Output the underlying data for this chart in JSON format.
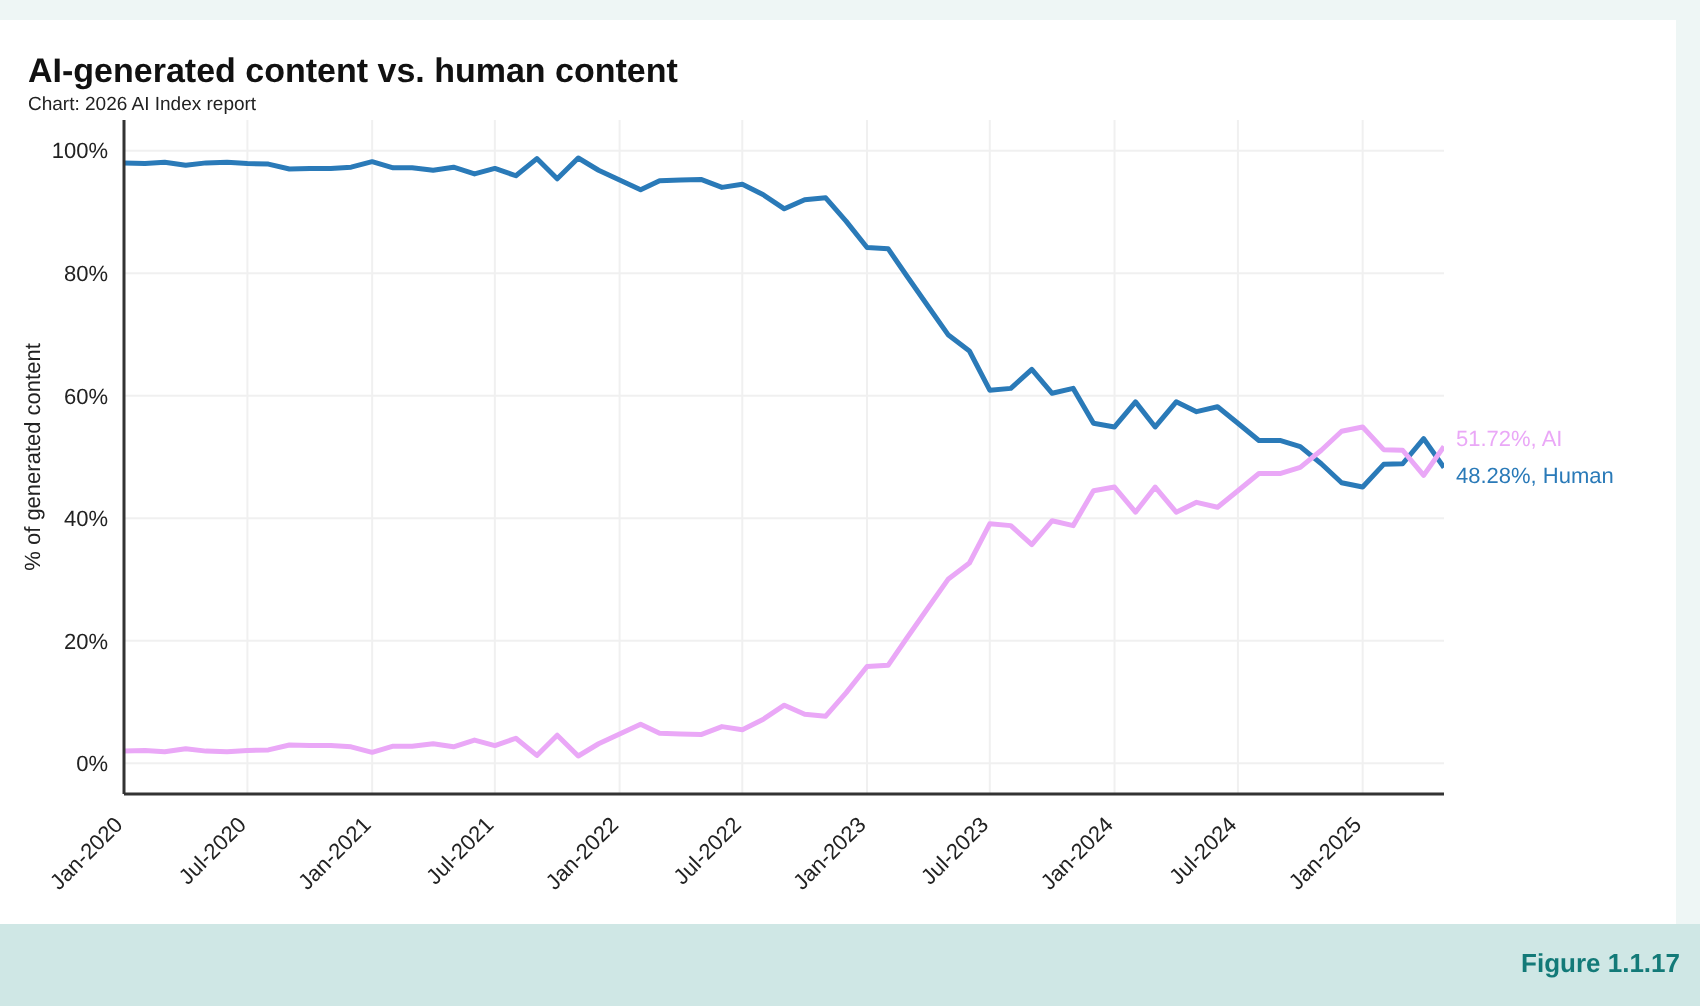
{
  "chart_data": {
    "type": "line",
    "title": "AI-generated content vs. human content",
    "subtitle": "Chart: 2026 AI Index report",
    "ylabel": "% of generated content",
    "x": [
      "2020-01",
      "2020-02",
      "2020-03",
      "2020-04",
      "2020-05",
      "2020-06",
      "2020-07",
      "2020-08",
      "2020-09",
      "2020-10",
      "2020-11",
      "2020-12",
      "2021-01",
      "2021-02",
      "2021-03",
      "2021-04",
      "2021-05",
      "2021-06",
      "2021-07",
      "2021-08",
      "2021-09",
      "2021-10",
      "2021-11",
      "2021-12",
      "2022-01",
      "2022-02",
      "2022-03",
      "2022-04",
      "2022-05",
      "2022-06",
      "2022-07",
      "2022-08",
      "2022-09",
      "2022-10",
      "2022-11",
      "2022-12",
      "2023-01",
      "2023-02",
      "2023-03",
      "2023-04",
      "2023-05",
      "2023-06",
      "2023-07",
      "2023-08",
      "2023-09",
      "2023-10",
      "2023-11",
      "2023-12",
      "2024-01",
      "2024-02",
      "2024-03",
      "2024-04",
      "2024-05",
      "2024-06",
      "2024-07",
      "2024-08",
      "2024-09",
      "2024-10",
      "2024-11",
      "2024-12",
      "2025-01",
      "2025-02",
      "2025-03",
      "2025-04",
      "2025-05"
    ],
    "series": [
      {
        "name": "Human",
        "color": "#2a7ab8",
        "values": [
          98.0,
          97.9,
          98.1,
          97.6,
          98.0,
          98.1,
          97.9,
          97.8,
          97.0,
          97.1,
          97.1,
          97.3,
          98.2,
          97.2,
          97.2,
          96.8,
          97.3,
          96.2,
          97.1,
          95.9,
          98.7,
          95.4,
          98.8,
          96.8,
          95.2,
          93.6,
          95.1,
          95.2,
          95.3,
          94.0,
          94.5,
          92.8,
          90.5,
          92.0,
          92.3,
          88.5,
          84.2,
          84.0,
          79.5,
          74.6,
          69.9,
          67.3,
          60.9,
          61.2,
          64.3,
          60.4,
          61.2,
          55.5,
          54.9,
          59.0,
          54.9,
          59.0,
          57.4,
          58.2,
          55.5,
          52.7,
          52.7,
          51.7,
          48.9,
          45.8,
          45.1,
          48.8,
          48.9,
          53.0,
          48.28
        ],
        "value_labels": [
          null,
          null,
          null,
          null,
          null,
          null,
          null,
          null,
          null,
          null,
          null,
          null,
          null,
          null,
          null,
          null,
          null,
          null,
          null,
          null,
          null,
          null,
          null,
          null,
          null,
          null,
          null,
          null,
          null,
          null,
          null,
          null,
          null,
          null,
          null,
          null,
          null,
          null,
          null,
          null,
          null,
          null,
          null,
          null,
          null,
          null,
          null,
          null,
          null,
          null,
          null,
          null,
          null,
          null,
          null,
          null,
          null,
          null,
          null,
          null,
          null,
          null,
          null,
          null,
          "48.28%,"
        ]
      },
      {
        "name": "AI",
        "color": "#eaa8f7",
        "values": [
          2.0,
          2.1,
          1.9,
          2.4,
          2.0,
          1.9,
          2.1,
          2.2,
          3.0,
          2.9,
          2.9,
          2.7,
          1.8,
          2.8,
          2.8,
          3.2,
          2.7,
          3.8,
          2.9,
          4.1,
          1.3,
          4.6,
          1.2,
          3.2,
          4.8,
          6.4,
          4.9,
          4.8,
          4.7,
          6.0,
          5.5,
          7.2,
          9.5,
          8.0,
          7.7,
          11.5,
          15.8,
          16.0,
          20.5,
          25.4,
          30.1,
          32.7,
          39.1,
          38.8,
          35.7,
          39.6,
          38.8,
          44.5,
          45.1,
          41.0,
          45.1,
          41.0,
          42.6,
          41.8,
          44.5,
          47.3,
          47.3,
          48.3,
          51.1,
          54.2,
          54.9,
          51.2,
          51.1,
          47.0,
          51.72
        ],
        "value_labels": [
          null,
          null,
          null,
          null,
          null,
          null,
          null,
          null,
          null,
          null,
          null,
          null,
          null,
          null,
          null,
          null,
          null,
          null,
          null,
          null,
          null,
          null,
          null,
          null,
          null,
          null,
          null,
          null,
          null,
          null,
          null,
          null,
          null,
          null,
          null,
          null,
          null,
          null,
          null,
          null,
          null,
          null,
          null,
          null,
          null,
          null,
          null,
          null,
          null,
          null,
          null,
          null,
          null,
          null,
          null,
          null,
          null,
          null,
          null,
          null,
          null,
          null,
          null,
          null,
          "51.72%,"
        ]
      }
    ],
    "xlim": [
      "2020-01",
      "2025-05"
    ],
    "xticks": [
      {
        "value": "2020-01",
        "label": "Jan-2020"
      },
      {
        "value": "2020-07",
        "label": "Jul-2020"
      },
      {
        "value": "2021-01",
        "label": "Jan-2021"
      },
      {
        "value": "2021-07",
        "label": "Jul-2021"
      },
      {
        "value": "2022-01",
        "label": "Jan-2022"
      },
      {
        "value": "2022-07",
        "label": "Jul-2022"
      },
      {
        "value": "2023-01",
        "label": "Jan-2023"
      },
      {
        "value": "2023-07",
        "label": "Jul-2023"
      },
      {
        "value": "2024-01",
        "label": "Jan-2024"
      },
      {
        "value": "2024-07",
        "label": "Jul-2024"
      },
      {
        "value": "2025-01",
        "label": "Jan-2025"
      }
    ],
    "ylim": [
      -5,
      105
    ],
    "yticks": [
      {
        "value": 0,
        "label": "0%"
      },
      {
        "value": 20,
        "label": "20%"
      },
      {
        "value": 40,
        "label": "40%"
      },
      {
        "value": 60,
        "label": "60%"
      },
      {
        "value": 80,
        "label": "80%"
      },
      {
        "value": 100,
        "label": "100%"
      }
    ],
    "grid": true,
    "marker": "none",
    "line_style": "solid",
    "annotations": [
      "Figure 1.1.17"
    ]
  }
}
